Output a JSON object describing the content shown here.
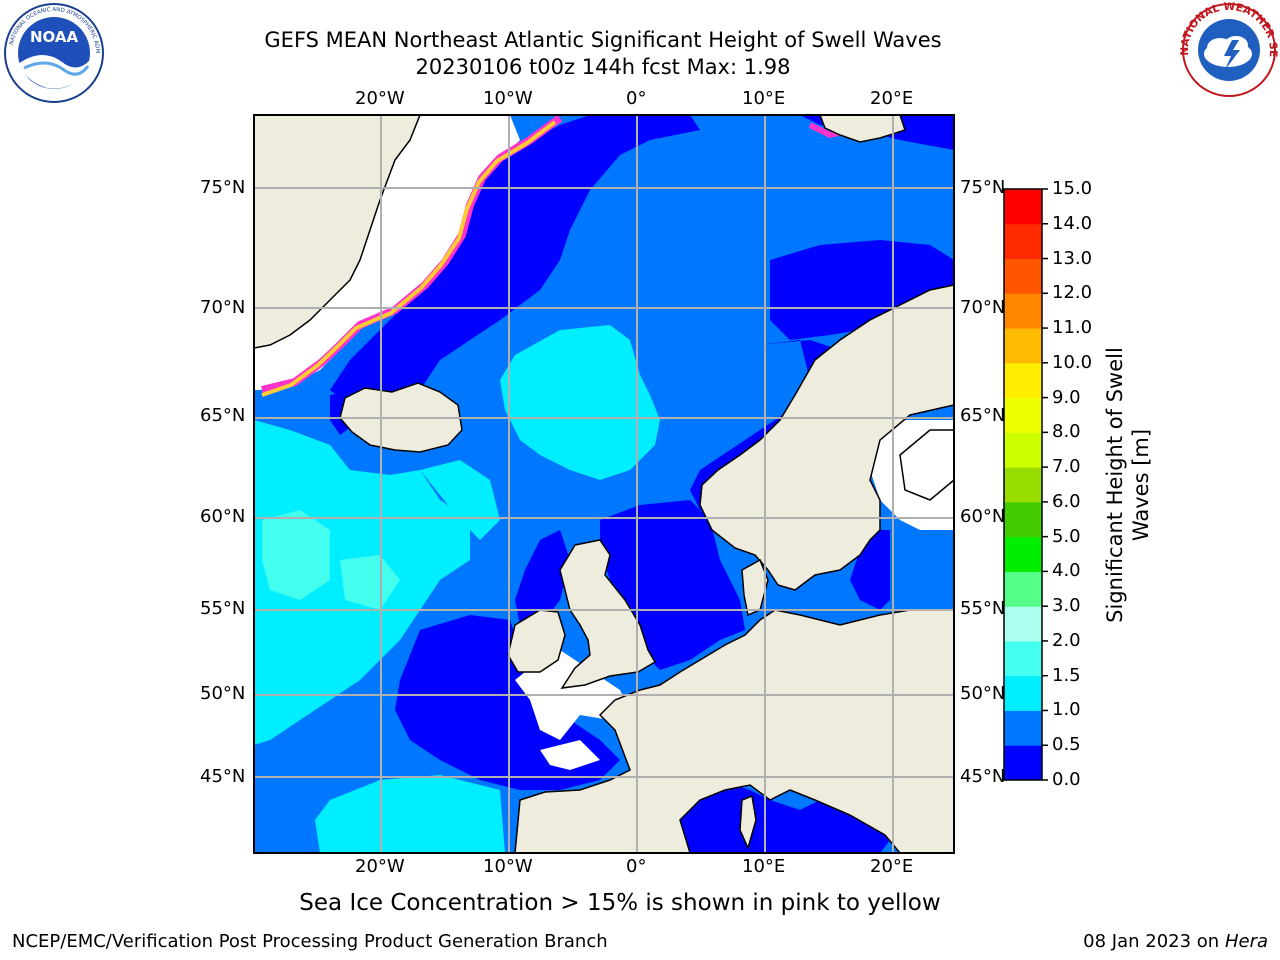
{
  "title_line1": "GEFS MEAN Northeast Atlantic Significant Height of Swell Waves",
  "title_line2": "20230106 t00z 144h fcst   Max: 1.98",
  "map": {
    "lon_labels": [
      "20°W",
      "10°W",
      "0°",
      "10°E",
      "20°E"
    ],
    "lat_labels": [
      "75°N",
      "70°N",
      "65°N",
      "60°N",
      "55°N",
      "50°N",
      "45°N"
    ],
    "colors": {
      "land": "#eeecdd",
      "frame": "#000000",
      "grid": "#b0b0b0",
      "ice_pink": "#ff33cc",
      "ice_yellow": "#ffcc33"
    }
  },
  "colorbar": {
    "label": "Significant Height of Swell Waves [m]",
    "ticks": [
      "0.0",
      "0.5",
      "1.0",
      "1.5",
      "2.0",
      "3.0",
      "4.0",
      "5.0",
      "6.0",
      "7.0",
      "8.0",
      "9.0",
      "10.0",
      "11.0",
      "12.0",
      "13.0",
      "14.0",
      "15.0"
    ],
    "colors": [
      "#0000ff",
      "#0077ff",
      "#00eeff",
      "#44ffee",
      "#aaffee",
      "#55ff88",
      "#00ee00",
      "#44cc00",
      "#99dd00",
      "#ccff00",
      "#eeff00",
      "#ffee00",
      "#ffbb00",
      "#ff8800",
      "#ff5500",
      "#ff2a00",
      "#ff0000"
    ]
  },
  "ice_note": "Sea Ice Concentration > 15% is shown in pink to yellow",
  "footer": {
    "left": "NCEP/EMC/Verification Post Processing Product Generation Branch",
    "date": "08 Jan 2023 on ",
    "machine": "Hera"
  },
  "logos": {
    "noaa_text": "NOAA",
    "nws_text": "NATIONAL WEATHER SERVICE"
  }
}
